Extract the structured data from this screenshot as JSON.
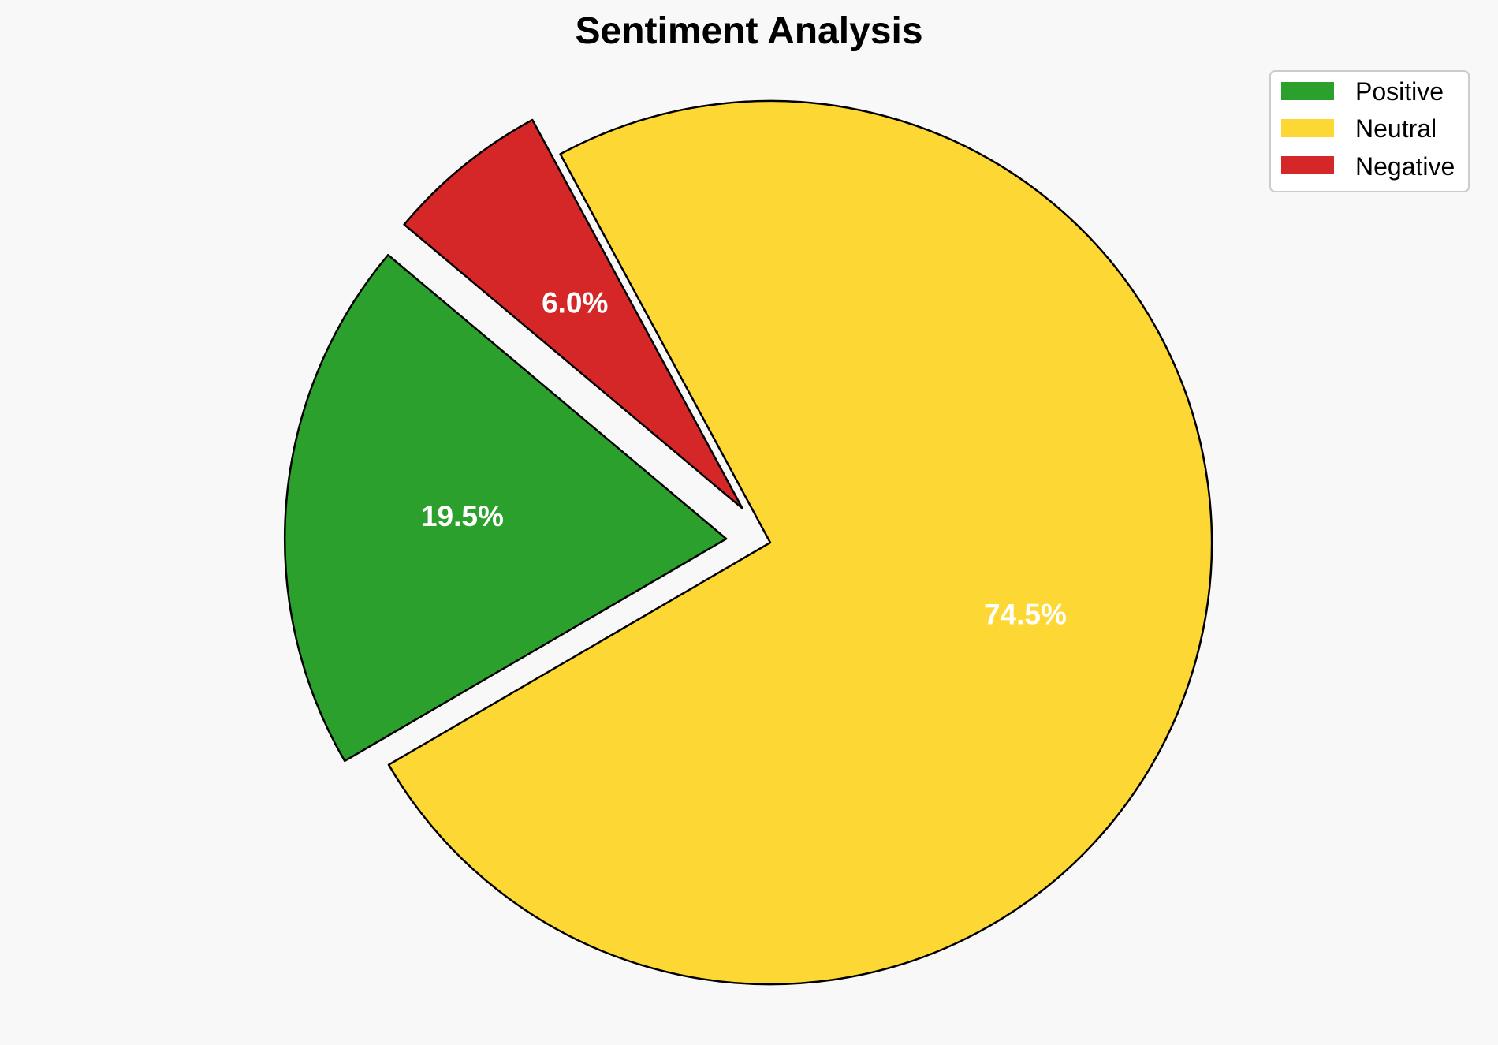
{
  "chart_data": {
    "type": "pie",
    "title": "Sentiment Analysis",
    "categories": [
      "Positive",
      "Neutral",
      "Negative"
    ],
    "values": [
      19.5,
      74.5,
      6.0
    ],
    "value_labels": [
      "19.5%",
      "74.5%",
      "6.0%"
    ],
    "colors": [
      "#2ca02c",
      "#fdd835",
      "#d62728"
    ],
    "exploded": [
      true,
      false,
      true
    ],
    "start_angle_deg": 140,
    "direction": "counterclockwise",
    "legend": {
      "position": "top-right",
      "entries": [
        "Positive",
        "Neutral",
        "Negative"
      ]
    }
  }
}
